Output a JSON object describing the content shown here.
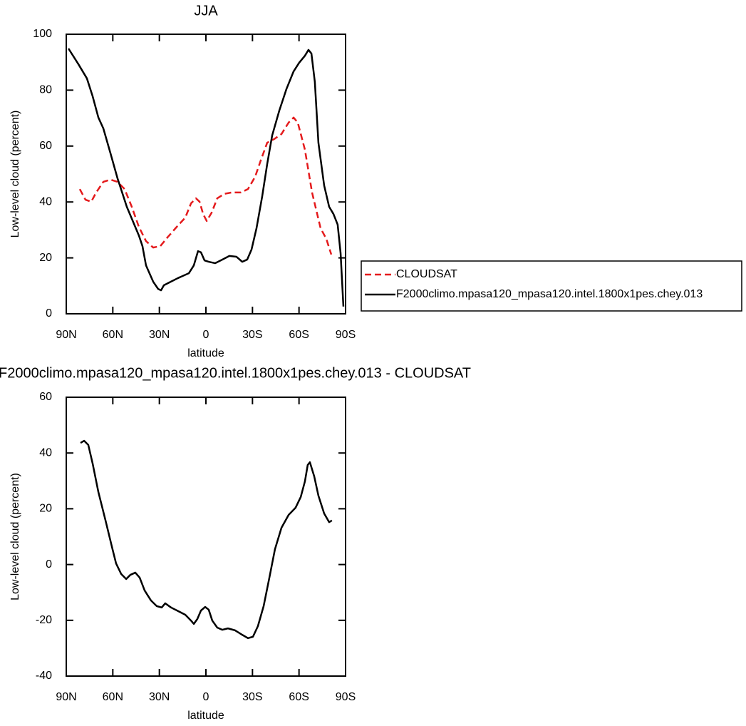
{
  "chart_data": [
    {
      "type": "line",
      "title": "JJA",
      "xlabel": "latitude",
      "ylabel": "Low-level cloud (percent)",
      "xlim": [
        90,
        -90
      ],
      "xticks": [
        {
          "value": 90,
          "label": "90N"
        },
        {
          "value": 60,
          "label": "60N"
        },
        {
          "value": 30,
          "label": "30N"
        },
        0,
        {
          "value": -30,
          "label": "30S"
        },
        {
          "value": -60,
          "label": "60S"
        },
        {
          "value": -90,
          "label": "90S"
        }
      ],
      "ylim": [
        0,
        100
      ],
      "yticks": [
        0,
        20,
        40,
        60,
        80,
        100
      ],
      "legend": "right",
      "series": [
        {
          "name": "CLOUDSAT",
          "color": "#e41a1c",
          "dashed": true,
          "x": [
            81.3,
            77.6,
            73.9,
            70.7,
            66.1,
            61.5,
            57,
            52.4,
            47.8,
            43.2,
            38.6,
            34,
            29.4,
            24.8,
            18.8,
            13.3,
            9.6,
            6.4,
            4.1,
            1.8,
            -0.5,
            -3.7,
            -7.3,
            -11.9,
            -16.5,
            -22.5,
            -27.1,
            -31.7,
            -35.3,
            -39.5,
            -44,
            -48.7,
            -53.3,
            -56.5,
            -59.2,
            -63.8,
            -68.4,
            -73.9,
            -77.6,
            -80.8
          ],
          "values": [
            44.6,
            40.8,
            40.1,
            43.4,
            47.2,
            48,
            47.2,
            44.6,
            38.3,
            31.1,
            26,
            23.7,
            24.2,
            27.3,
            31.1,
            34.4,
            39.5,
            41.3,
            40.1,
            35.7,
            33.2,
            36.2,
            41.3,
            42.9,
            43.4,
            43.4,
            44.6,
            49,
            54.8,
            61.2,
            62.5,
            64.3,
            68.4,
            70.2,
            68.4,
            58.7,
            43.4,
            30.6,
            26.8,
            21.2
          ]
        },
        {
          "name": "F2000climo.mpasa120_mpasa120.intel.1800x1pes.chey.013",
          "color": "#000000",
          "dashed": false,
          "x": [
            88.6,
            82.2,
            76.7,
            73,
            69.3,
            66.1,
            61.5,
            57,
            51,
            43.2,
            40.9,
            38.6,
            34,
            30.8,
            28.9,
            27.1,
            22.5,
            17.9,
            11,
            7.8,
            5.1,
            3.2,
            0.9,
            -1.8,
            -6,
            -10.6,
            -15.1,
            -19.7,
            -23.4,
            -26.6,
            -29.4,
            -32.6,
            -36.3,
            -39.5,
            -42.7,
            -47.3,
            -51.9,
            -56.5,
            -60.1,
            -63.8,
            -66.1,
            -68,
            -70.2,
            -72.5,
            -76.2,
            -79.4,
            -82.2,
            -84.9,
            -86.8,
            -88.6
          ],
          "values": [
            94.9,
            89.3,
            84.2,
            77.8,
            70.2,
            66.3,
            57.4,
            48.5,
            38.3,
            28,
            24.2,
            17.3,
            11.5,
            8.9,
            8.4,
            10.2,
            11.5,
            12.8,
            14.5,
            17.3,
            22.4,
            22,
            19.1,
            18.6,
            18.1,
            19.4,
            20.7,
            20.4,
            18.6,
            19.4,
            23,
            30.6,
            42.1,
            53.6,
            63.8,
            72.7,
            80.4,
            86.7,
            89.8,
            92.3,
            94.4,
            93.1,
            82.9,
            61.2,
            45.9,
            38.3,
            35.7,
            31.9,
            21.7,
            2.6
          ]
        }
      ]
    },
    {
      "type": "line",
      "title": "F2000climo.mpasa120_mpasa120.intel.1800x1pes.chey.013 - CLOUDSAT",
      "xlabel": "latitude",
      "ylabel": "Low-level cloud (percent)",
      "xlim": [
        90,
        -90
      ],
      "xticks": [
        {
          "value": 90,
          "label": "90N"
        },
        {
          "value": 60,
          "label": "60N"
        },
        {
          "value": 30,
          "label": "30N"
        },
        0,
        {
          "value": -30,
          "label": "30S"
        },
        {
          "value": -60,
          "label": "60S"
        },
        {
          "value": -90,
          "label": "90S"
        }
      ],
      "ylim": [
        -40,
        60
      ],
      "yticks": [
        -40,
        -20,
        0,
        20,
        40,
        60
      ],
      "series": [
        {
          "color": "#000000",
          "dashed": false,
          "x": [
            80.8,
            78.5,
            75.8,
            73,
            69.3,
            64.7,
            60.2,
            57.9,
            54.6,
            51.4,
            48.7,
            45.5,
            42.7,
            39.5,
            35.4,
            31.7,
            28.5,
            26.2,
            22.5,
            17.9,
            13.3,
            9.6,
            7.8,
            5.5,
            3.2,
            0.5,
            -1.8,
            -4.1,
            -7.3,
            -10.6,
            -14.2,
            -18.8,
            -23.4,
            -27.1,
            -30.3,
            -33.5,
            -37.2,
            -40.9,
            -44.5,
            -48.7,
            -53.3,
            -57.8,
            -61.1,
            -63.8,
            -65.6,
            -67,
            -69.8,
            -72.5,
            -76.2,
            -79.4,
            -81.2
          ],
          "values": [
            43.6,
            44.4,
            42.9,
            36.2,
            26,
            15.8,
            5.5,
            0.4,
            -3.4,
            -5.2,
            -3.7,
            -2.9,
            -4.7,
            -9.3,
            -12.9,
            -14.9,
            -15.4,
            -13.9,
            -15.4,
            -16.7,
            -18,
            -20.1,
            -21.3,
            -19.5,
            -16.5,
            -15.2,
            -16.2,
            -20.1,
            -22.6,
            -23.4,
            -22.9,
            -23.6,
            -25.2,
            -26.4,
            -25.9,
            -22.1,
            -14.9,
            -4.7,
            5.5,
            13.2,
            17.8,
            20.4,
            24.2,
            29.8,
            35.7,
            36.7,
            31.6,
            24.7,
            18.3,
            15.2,
            15.8
          ]
        }
      ]
    }
  ]
}
